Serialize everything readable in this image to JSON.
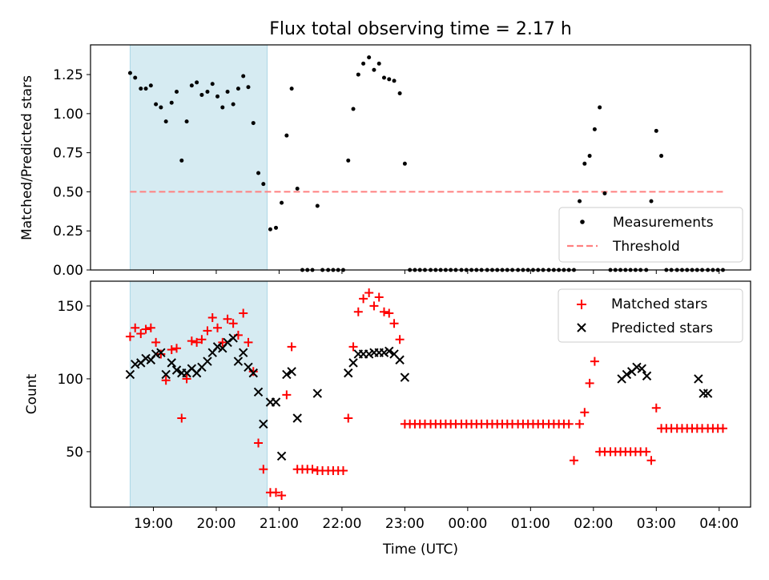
{
  "chart_data": [
    {
      "type": "scatter",
      "title": "Flux total observing time = 2.17 h",
      "ylabel": "Matched/Predicted stars",
      "ylim": [
        0,
        1.44
      ],
      "yticks": [
        0.0,
        0.25,
        0.5,
        0.75,
        1.0,
        1.25
      ],
      "ytick_labels": [
        "0.00",
        "0.25",
        "0.50",
        "0.75",
        "1.00",
        "1.25"
      ],
      "highlight_span_hours": [
        18.63,
        20.81
      ],
      "threshold": 0.5,
      "legend": {
        "placement": "lower-right",
        "entries": [
          "Measurements",
          "Threshold"
        ]
      },
      "series": [
        {
          "name": "Measurements",
          "x_hours": [
            18.63,
            18.71,
            18.8,
            18.88,
            18.96,
            19.04,
            19.12,
            19.2,
            19.29,
            19.37,
            19.45,
            19.53,
            19.61,
            19.69,
            19.77,
            19.86,
            19.94,
            20.02,
            20.1,
            20.18,
            20.27,
            20.35,
            20.43,
            20.51,
            20.59,
            20.67,
            20.75,
            20.86,
            20.95,
            21.04,
            21.12,
            21.2,
            21.29,
            21.37,
            21.45,
            21.53,
            21.61,
            21.69,
            21.78,
            21.86,
            21.94,
            22.02,
            22.1,
            22.18,
            22.26,
            22.34,
            22.43,
            22.51,
            22.59,
            22.67,
            22.75,
            22.83,
            22.92,
            23.0,
            23.08,
            23.16,
            23.24,
            23.32,
            23.41,
            23.49,
            23.57,
            23.65,
            23.73,
            23.81,
            23.9,
            23.98,
            24.06,
            24.14,
            24.22,
            24.31,
            24.39,
            24.47,
            24.55,
            24.63,
            24.71,
            24.8,
            24.88,
            24.96,
            25.04,
            25.12,
            25.2,
            25.29,
            25.37,
            25.45,
            25.53,
            25.61,
            25.69,
            25.78,
            25.86,
            25.94,
            26.02,
            26.1,
            26.18,
            26.27,
            26.35,
            26.43,
            26.51,
            26.59,
            26.67,
            26.75,
            26.84,
            26.92,
            27.0,
            27.08,
            27.16,
            27.24,
            27.33,
            27.41,
            27.49,
            27.57,
            27.65,
            27.73,
            27.82,
            27.9,
            27.98,
            28.06
          ],
          "values": [
            1.26,
            1.23,
            1.16,
            1.16,
            1.18,
            1.06,
            1.04,
            0.95,
            1.07,
            1.14,
            0.7,
            0.95,
            1.18,
            1.2,
            1.12,
            1.14,
            1.19,
            1.11,
            1.04,
            1.14,
            1.06,
            1.16,
            1.24,
            1.17,
            0.94,
            0.62,
            0.55,
            0.26,
            0.27,
            0.43,
            0.86,
            1.16,
            0.52,
            0.0,
            0.0,
            0.0,
            0.41,
            0.0,
            0.0,
            0.0,
            0.0,
            0.0,
            0.7,
            1.03,
            1.25,
            1.32,
            1.36,
            1.28,
            1.32,
            1.23,
            1.22,
            1.21,
            1.13,
            0.68,
            0.0,
            0.0,
            0.0,
            0.0,
            0.0,
            0.0,
            0.0,
            0.0,
            0.0,
            0.0,
            0.0,
            0.0,
            0.0,
            0.0,
            0.0,
            0.0,
            0.0,
            0.0,
            0.0,
            0.0,
            0.0,
            0.0,
            0.0,
            0.0,
            0.0,
            0.0,
            0.0,
            0.0,
            0.0,
            0.0,
            0.0,
            0.0,
            0.0,
            0.44,
            0.68,
            0.73,
            0.9,
            1.04,
            0.49,
            0.0,
            0.0,
            0.0,
            0.0,
            0.0,
            0.0,
            0.0,
            0.0,
            0.44,
            0.89,
            0.73,
            0.0,
            0.0,
            0.0,
            0.0,
            0.0,
            0.0,
            0.0,
            0.0,
            0.0,
            0.0,
            0.0,
            0.0
          ]
        }
      ]
    },
    {
      "type": "scatter",
      "xlabel": "Time (UTC)",
      "ylabel": "Count",
      "ylim": [
        12,
        167
      ],
      "yticks": [
        50,
        100,
        150
      ],
      "ytick_labels": [
        "50",
        "100",
        "150"
      ],
      "xlim_hours": [
        18.0,
        28.5
      ],
      "xticks_hours": [
        19,
        20,
        21,
        22,
        23,
        24,
        25,
        26,
        27,
        28
      ],
      "xtick_labels": [
        "19:00",
        "20:00",
        "21:00",
        "22:00",
        "23:00",
        "00:00",
        "01:00",
        "02:00",
        "03:00",
        "04:00"
      ],
      "highlight_span_hours": [
        18.63,
        20.81
      ],
      "legend": {
        "placement": "top-right",
        "entries": [
          "Matched stars",
          "Predicted stars"
        ]
      },
      "series": [
        {
          "name": "Matched stars",
          "marker": "+",
          "x_hours": [
            18.63,
            18.71,
            18.8,
            18.88,
            18.96,
            19.04,
            19.12,
            19.2,
            19.29,
            19.37,
            19.45,
            19.53,
            19.61,
            19.69,
            19.77,
            19.86,
            19.94,
            20.02,
            20.1,
            20.18,
            20.27,
            20.35,
            20.43,
            20.51,
            20.59,
            20.67,
            20.75,
            20.86,
            20.95,
            21.04,
            21.12,
            21.2,
            21.29,
            21.37,
            21.45,
            21.53,
            21.61,
            21.69,
            21.78,
            21.86,
            21.94,
            22.02,
            22.1,
            22.18,
            22.26,
            22.34,
            22.43,
            22.51,
            22.59,
            22.67,
            22.75,
            22.83,
            22.92,
            23.0,
            23.08,
            23.16,
            23.24,
            23.32,
            23.41,
            23.49,
            23.57,
            23.65,
            23.73,
            23.81,
            23.9,
            23.98,
            24.06,
            24.14,
            24.22,
            24.31,
            24.39,
            24.47,
            24.55,
            24.63,
            24.71,
            24.8,
            24.88,
            24.96,
            25.04,
            25.12,
            25.2,
            25.29,
            25.37,
            25.45,
            25.53,
            25.61,
            25.69,
            25.78,
            25.86,
            25.94,
            26.02,
            26.1,
            26.18,
            26.27,
            26.35,
            26.43,
            26.51,
            26.59,
            26.67,
            26.75,
            26.84,
            26.92,
            27.0,
            27.08,
            27.16,
            27.24,
            27.33,
            27.41,
            27.49,
            27.57,
            27.65,
            27.73,
            27.82,
            27.9,
            27.98,
            28.06
          ],
          "values": [
            129,
            135,
            131,
            134,
            135,
            125,
            117,
            99,
            120,
            121,
            73,
            100,
            126,
            125,
            127,
            133,
            142,
            135,
            125,
            141,
            138,
            130,
            145,
            125,
            105,
            56,
            38,
            22,
            22,
            20,
            89,
            122,
            38,
            38,
            38,
            38,
            37,
            37,
            37,
            37,
            37,
            37,
            73,
            122,
            146,
            155,
            159,
            150,
            156,
            146,
            145,
            138,
            127,
            69,
            69,
            69,
            69,
            69,
            69,
            69,
            69,
            69,
            69,
            69,
            69,
            69,
            69,
            69,
            69,
            69,
            69,
            69,
            69,
            69,
            69,
            69,
            69,
            69,
            69,
            69,
            69,
            69,
            69,
            69,
            69,
            69,
            44,
            69,
            77,
            97,
            112,
            50,
            50,
            50,
            50,
            50,
            50,
            50,
            50,
            50,
            50,
            44,
            80,
            66,
            66,
            66,
            66,
            66,
            66,
            66,
            66,
            66,
            66,
            66,
            66,
            66
          ]
        },
        {
          "name": "Predicted stars",
          "marker": "x",
          "x_hours": [
            18.63,
            18.71,
            18.8,
            18.88,
            18.96,
            19.04,
            19.12,
            19.2,
            19.29,
            19.37,
            19.45,
            19.53,
            19.61,
            19.69,
            19.77,
            19.86,
            19.94,
            20.02,
            20.1,
            20.18,
            20.27,
            20.35,
            20.43,
            20.51,
            20.59,
            20.67,
            20.75,
            20.86,
            20.95,
            21.04,
            21.12,
            21.2,
            21.29,
            21.61,
            22.1,
            22.18,
            22.26,
            22.34,
            22.43,
            22.51,
            22.59,
            22.67,
            22.75,
            22.83,
            22.92,
            23.0,
            26.45,
            26.53,
            26.61,
            26.69,
            26.77,
            26.85,
            27.67,
            27.75,
            27.82
          ],
          "values": [
            103,
            110,
            111,
            114,
            113,
            117,
            118,
            103,
            111,
            106,
            104,
            104,
            107,
            104,
            108,
            112,
            118,
            122,
            121,
            125,
            128,
            112,
            118,
            108,
            104,
            91,
            69,
            84,
            84,
            47,
            103,
            105,
            73,
            90,
            104,
            111,
            117,
            117,
            117,
            118,
            118,
            118,
            119,
            117,
            113,
            101,
            100,
            103,
            105,
            108,
            107,
            102,
            100,
            90,
            90
          ]
        }
      ]
    }
  ]
}
